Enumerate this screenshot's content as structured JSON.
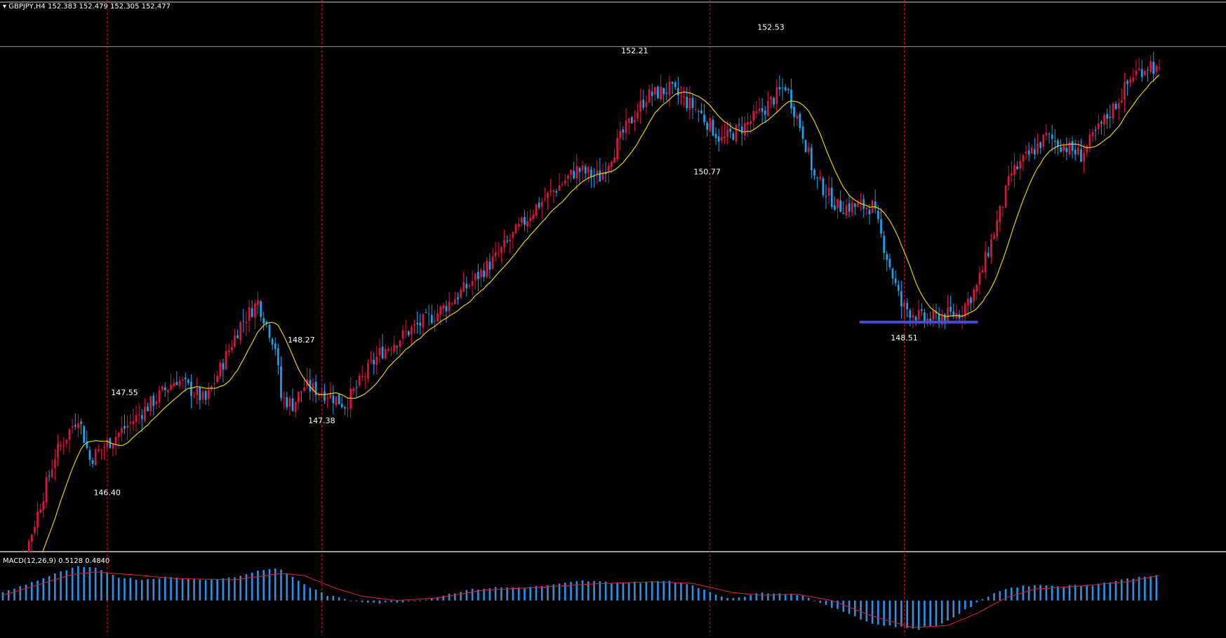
{
  "header": {
    "symbol": "GBPJPY,H4",
    "ohlc": "152.383 152.479 152.305 152.477"
  },
  "macd_header": {
    "label": "MACD(12,26,9) 0.5128 0.4840"
  },
  "colors": {
    "background": "#000000",
    "bull": "#e0123e",
    "bear": "#1aa3f0",
    "ma": "#e8d000",
    "vline": "#c8102e",
    "hline": "#9a9a9a",
    "support": "#4848e0",
    "macd_hist": "#2e8fe6",
    "macd_signal": "#d21f2f"
  },
  "chart_data": [
    {
      "type": "candlestick",
      "title": "GBPJPY,H4",
      "ylim": [
        145.6,
        152.9
      ],
      "hline": 152.38,
      "support_level": 148.51,
      "ohlc_anchors": [
        [
          0,
          144.9
        ],
        [
          8,
          145.5
        ],
        [
          18,
          146.8
        ],
        [
          26,
          147.35
        ],
        [
          30,
          146.75
        ],
        [
          34,
          146.9
        ],
        [
          44,
          147.25
        ],
        [
          60,
          147.85
        ],
        [
          70,
          147.55
        ],
        [
          82,
          148.6
        ],
        [
          88,
          148.9
        ],
        [
          94,
          148.3
        ],
        [
          96,
          147.6
        ],
        [
          100,
          147.5
        ],
        [
          104,
          147.75
        ],
        [
          112,
          147.65
        ],
        [
          118,
          147.5
        ],
        [
          124,
          147.85
        ],
        [
          130,
          148.2
        ],
        [
          140,
          148.5
        ],
        [
          150,
          148.75
        ],
        [
          160,
          149.1
        ],
        [
          170,
          149.5
        ],
        [
          184,
          150.2
        ],
        [
          198,
          150.7
        ],
        [
          206,
          150.6
        ],
        [
          214,
          151.2
        ],
        [
          222,
          151.7
        ],
        [
          230,
          151.8
        ],
        [
          240,
          151.5
        ],
        [
          248,
          151.1
        ],
        [
          256,
          151.3
        ],
        [
          262,
          151.5
        ],
        [
          270,
          151.85
        ],
        [
          276,
          151.2
        ],
        [
          280,
          150.6
        ],
        [
          288,
          150.2
        ],
        [
          300,
          150.2
        ],
        [
          310,
          148.85
        ],
        [
          318,
          148.65
        ],
        [
          330,
          148.75
        ],
        [
          336,
          149.1
        ],
        [
          342,
          149.85
        ],
        [
          348,
          150.65
        ],
        [
          354,
          150.9
        ],
        [
          360,
          151.15
        ],
        [
          372,
          150.9
        ],
        [
          378,
          151.25
        ],
        [
          384,
          151.6
        ],
        [
          390,
          152.0
        ],
        [
          396,
          152.15
        ],
        [
          399,
          152.0
        ]
      ],
      "candle_count": 400,
      "wick_noise": 0.35,
      "annotations": [
        {
          "text": "147.55",
          "xi": 42
        },
        {
          "text": "146.40",
          "xi": 36
        },
        {
          "text": "148.27",
          "xi": 103
        },
        {
          "text": "147.38",
          "xi": 110
        },
        {
          "text": "152.21",
          "xi": 218
        },
        {
          "text": "150.77",
          "xi": 243
        },
        {
          "text": "152.53",
          "xi": 265
        },
        {
          "text": "148.51",
          "xi": 311
        }
      ],
      "annotation_levels": [
        {
          "text": "147.55",
          "y": 147.55,
          "pos": "above"
        },
        {
          "text": "146.40",
          "y": 146.4,
          "pos": "below"
        },
        {
          "text": "148.27",
          "y": 148.27,
          "pos": "above"
        },
        {
          "text": "147.38",
          "y": 147.38,
          "pos": "below"
        },
        {
          "text": "152.21",
          "y": 152.21,
          "pos": "above"
        },
        {
          "text": "150.77",
          "y": 150.77,
          "pos": "below"
        },
        {
          "text": "152.53",
          "y": 152.53,
          "pos": "above"
        },
        {
          "text": "148.51",
          "y": 148.51,
          "pos": "below"
        }
      ],
      "vlines_at": [
        36,
        110,
        244,
        311
      ]
    },
    {
      "type": "bar",
      "title": "MACD(12,26,9) 0.5128 0.4840",
      "ylim": [
        -0.6,
        0.75
      ],
      "hist_anchors": [
        [
          0,
          0.15
        ],
        [
          10,
          0.35
        ],
        [
          20,
          0.55
        ],
        [
          26,
          0.65
        ],
        [
          32,
          0.62
        ],
        [
          40,
          0.45
        ],
        [
          48,
          0.4
        ],
        [
          56,
          0.45
        ],
        [
          64,
          0.42
        ],
        [
          72,
          0.4
        ],
        [
          80,
          0.45
        ],
        [
          90,
          0.6
        ],
        [
          96,
          0.6
        ],
        [
          100,
          0.45
        ],
        [
          106,
          0.25
        ],
        [
          112,
          0.1
        ],
        [
          120,
          0.0
        ],
        [
          130,
          -0.05
        ],
        [
          136,
          -0.03
        ],
        [
          144,
          0.0
        ],
        [
          152,
          0.1
        ],
        [
          160,
          0.2
        ],
        [
          170,
          0.25
        ],
        [
          180,
          0.25
        ],
        [
          190,
          0.3
        ],
        [
          200,
          0.38
        ],
        [
          210,
          0.35
        ],
        [
          220,
          0.35
        ],
        [
          230,
          0.38
        ],
        [
          238,
          0.3
        ],
        [
          244,
          0.15
        ],
        [
          250,
          0.05
        ],
        [
          256,
          0.08
        ],
        [
          262,
          0.15
        ],
        [
          268,
          0.15
        ],
        [
          276,
          0.1
        ],
        [
          284,
          -0.1
        ],
        [
          292,
          -0.25
        ],
        [
          300,
          -0.45
        ],
        [
          308,
          -0.5
        ],
        [
          316,
          -0.55
        ],
        [
          324,
          -0.45
        ],
        [
          330,
          -0.25
        ],
        [
          336,
          -0.05
        ],
        [
          342,
          0.15
        ],
        [
          348,
          0.25
        ],
        [
          356,
          0.3
        ],
        [
          366,
          0.28
        ],
        [
          376,
          0.3
        ],
        [
          386,
          0.4
        ],
        [
          396,
          0.48
        ],
        [
          399,
          0.5
        ]
      ],
      "signal_anchors": [
        [
          0,
          0.1
        ],
        [
          12,
          0.3
        ],
        [
          24,
          0.5
        ],
        [
          32,
          0.55
        ],
        [
          44,
          0.5
        ],
        [
          60,
          0.42
        ],
        [
          80,
          0.4
        ],
        [
          96,
          0.52
        ],
        [
          104,
          0.48
        ],
        [
          114,
          0.25
        ],
        [
          124,
          0.08
        ],
        [
          136,
          0.0
        ],
        [
          150,
          0.05
        ],
        [
          166,
          0.2
        ],
        [
          184,
          0.25
        ],
        [
          204,
          0.32
        ],
        [
          224,
          0.36
        ],
        [
          238,
          0.33
        ],
        [
          252,
          0.15
        ],
        [
          262,
          0.1
        ],
        [
          274,
          0.12
        ],
        [
          286,
          0.0
        ],
        [
          300,
          -0.3
        ],
        [
          314,
          -0.52
        ],
        [
          326,
          -0.48
        ],
        [
          336,
          -0.25
        ],
        [
          346,
          0.05
        ],
        [
          356,
          0.22
        ],
        [
          372,
          0.28
        ],
        [
          388,
          0.36
        ],
        [
          399,
          0.48
        ]
      ]
    }
  ]
}
